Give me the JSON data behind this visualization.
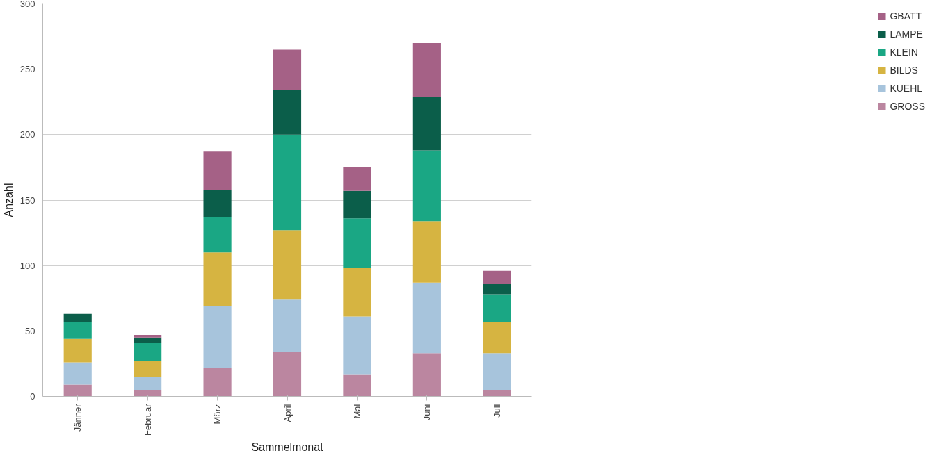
{
  "chart_data": {
    "type": "bar",
    "stacked": true,
    "xlabel": "Sammelmonat",
    "ylabel": "Anzahl",
    "categories": [
      "Jänner",
      "Februar",
      "März",
      "April",
      "Mai",
      "Juni",
      "Juli"
    ],
    "series": [
      {
        "name": "GROSS",
        "color": "#bb86a0",
        "values": [
          9,
          5,
          22,
          34,
          17,
          33,
          5
        ]
      },
      {
        "name": "KUEHL",
        "color": "#a7c4dc",
        "values": [
          17,
          10,
          47,
          40,
          44,
          54,
          28
        ]
      },
      {
        "name": "BILDS",
        "color": "#d6b441",
        "values": [
          18,
          12,
          41,
          53,
          37,
          47,
          24
        ]
      },
      {
        "name": "KLEIN",
        "color": "#1aa784",
        "values": [
          13,
          14,
          27,
          73,
          38,
          54,
          21
        ]
      },
      {
        "name": "LAMPE",
        "color": "#0b5e4a",
        "values": [
          6,
          4,
          21,
          34,
          21,
          41,
          8
        ]
      },
      {
        "name": "GBATT",
        "color": "#a56186",
        "values": [
          0,
          2,
          29,
          31,
          18,
          41,
          10
        ]
      }
    ],
    "ylim": [
      0,
      300
    ],
    "yticks": [
      0,
      50,
      100,
      150,
      200,
      250,
      300
    ],
    "grid": "y",
    "legend": "right"
  }
}
